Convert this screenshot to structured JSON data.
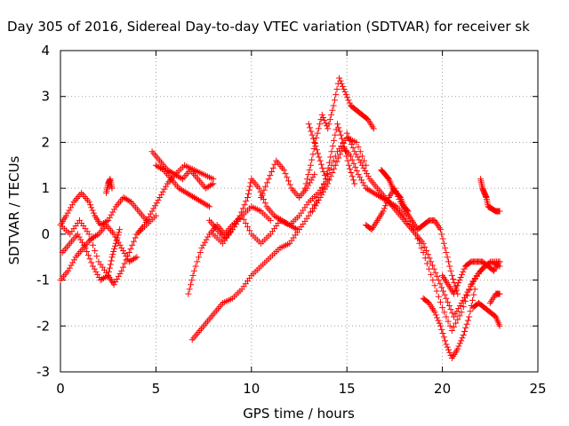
{
  "chart_data": {
    "type": "scatter",
    "title": "Day 305 of 2016, Sidereal Day-to-day VTEC variation (SDTVAR) for receiver sk",
    "xlabel": "GPS time / hours",
    "ylabel": "SDTVAR / TECUs",
    "xlim": [
      0,
      25
    ],
    "ylim": [
      -3,
      4
    ],
    "xticks": [
      "0",
      "5",
      "10",
      "15",
      "20",
      "25"
    ],
    "yticks": [
      "-3",
      "-2",
      "-1",
      "0",
      "1",
      "2",
      "3",
      "4"
    ],
    "grid": true,
    "legend": "none",
    "marker": "+",
    "color": "#ff0000",
    "series": [
      {
        "x": [
          0.0,
          0.5,
          1.0,
          1.5,
          2.0,
          2.5,
          2.8,
          3.2,
          3.6,
          4.0,
          4.5,
          5.0
        ],
        "y": [
          0.2,
          0.0,
          0.3,
          0.0,
          -0.6,
          -0.9,
          -1.1,
          -0.8,
          -0.4,
          0.0,
          0.2,
          0.4
        ]
      },
      {
        "x": [
          0.0,
          0.4,
          0.8,
          1.2,
          1.6,
          2.0,
          2.4,
          2.8,
          3.2,
          3.6,
          4.0
        ],
        "y": [
          -1.0,
          -0.8,
          -0.5,
          -0.3,
          -0.1,
          0.0,
          0.2,
          0.0,
          -0.3,
          -0.6,
          -0.5
        ]
      },
      {
        "x": [
          0.0,
          0.3,
          0.7,
          1.1,
          1.5,
          1.8,
          2.1,
          2.5,
          2.9,
          3.3,
          3.7,
          4.1,
          4.5
        ],
        "y": [
          0.2,
          0.4,
          0.7,
          0.9,
          0.7,
          0.4,
          0.2,
          0.3,
          0.6,
          0.8,
          0.7,
          0.5,
          0.3
        ]
      },
      {
        "x": [
          0.1,
          0.5,
          0.9,
          1.3,
          1.7,
          2.1,
          2.5,
          2.7,
          2.9,
          3.1
        ],
        "y": [
          -0.4,
          -0.2,
          0.0,
          -0.3,
          -0.7,
          -1.0,
          -0.9,
          -0.5,
          -0.2,
          0.1
        ]
      },
      {
        "x": [
          2.4,
          2.5,
          2.6,
          2.7
        ],
        "y": [
          0.9,
          1.1,
          1.2,
          1.0
        ]
      },
      {
        "x": [
          4.0,
          4.4,
          4.8,
          5.2,
          5.6,
          6.0,
          6.4,
          6.8,
          7.2,
          7.6,
          8.0
        ],
        "y": [
          0.0,
          0.2,
          0.5,
          0.8,
          1.1,
          1.3,
          1.2,
          1.4,
          1.2,
          1.0,
          1.1
        ]
      },
      {
        "x": [
          4.8,
          5.2,
          5.6,
          6.0,
          6.5,
          7.0,
          7.5,
          8.0
        ],
        "y": [
          1.8,
          1.6,
          1.4,
          1.3,
          1.5,
          1.4,
          1.3,
          1.2
        ]
      },
      {
        "x": [
          5.0,
          5.4,
          5.8,
          6.2,
          6.6,
          7.0,
          7.4,
          7.8
        ],
        "y": [
          1.5,
          1.4,
          1.2,
          1.0,
          0.9,
          0.8,
          0.7,
          0.6
        ]
      },
      {
        "x": [
          7.8,
          8.2,
          8.6,
          9.0,
          9.4,
          9.8,
          10.0,
          10.4,
          10.8,
          11.2,
          11.6,
          12.0,
          12.4
        ],
        "y": [
          0.3,
          0.1,
          -0.1,
          0.1,
          0.4,
          0.8,
          1.2,
          1.0,
          0.6,
          0.4,
          0.3,
          0.2,
          0.1
        ]
      },
      {
        "x": [
          6.7,
          7.0,
          7.4,
          7.8,
          8.2,
          8.6,
          9.0,
          9.5,
          10.0,
          10.5,
          11.0
        ],
        "y": [
          -1.3,
          -0.8,
          -0.3,
          0.0,
          0.2,
          0.0,
          0.2,
          0.4,
          0.6,
          0.5,
          0.3
        ]
      },
      {
        "x": [
          6.9,
          7.3,
          7.7,
          8.1,
          8.5,
          9.0,
          9.5,
          10.0,
          10.5,
          11.0,
          11.5,
          12.0,
          12.5,
          13.0,
          13.5,
          14.0,
          14.5,
          15.0,
          15.5,
          16.0
        ],
        "y": [
          -2.3,
          -2.1,
          -1.9,
          -1.7,
          -1.5,
          -1.4,
          -1.2,
          -0.9,
          -0.7,
          -0.5,
          -0.3,
          -0.2,
          0.1,
          0.4,
          0.8,
          1.3,
          1.8,
          2.1,
          2.0,
          1.5
        ]
      },
      {
        "x": [
          8.0,
          8.5,
          9.0,
          9.5,
          10.0,
          10.5,
          11.0,
          11.5,
          12.0,
          12.5,
          13.0,
          13.5,
          14.0
        ],
        "y": [
          0.0,
          -0.2,
          0.1,
          0.4,
          0.0,
          -0.2,
          0.0,
          0.3,
          0.2,
          0.4,
          0.7,
          0.9,
          1.2
        ]
      },
      {
        "x": [
          10.5,
          10.9,
          11.3,
          11.7,
          12.1,
          12.5,
          12.9,
          13.3
        ],
        "y": [
          0.8,
          1.2,
          1.6,
          1.4,
          1.0,
          0.8,
          1.0,
          1.3
        ]
      },
      {
        "x": [
          12.8,
          13.1,
          13.4,
          13.7,
          14.0,
          14.3,
          14.6,
          14.9,
          15.2,
          15.5,
          15.8,
          16.1,
          16.4
        ],
        "y": [
          1.0,
          1.5,
          2.1,
          2.6,
          2.3,
          2.8,
          3.4,
          3.1,
          2.8,
          2.7,
          2.6,
          2.5,
          2.3
        ]
      },
      {
        "x": [
          13.0,
          13.3,
          13.6,
          13.9,
          14.2,
          14.5,
          14.8,
          15.1,
          15.4
        ],
        "y": [
          2.4,
          2.0,
          1.6,
          1.2,
          1.8,
          2.4,
          2.0,
          1.5,
          1.1
        ]
      },
      {
        "x": [
          13.2,
          13.6,
          14.0,
          14.4,
          14.8,
          15.2,
          15.6,
          16.0,
          16.4,
          16.8,
          17.2,
          17.6,
          18.0,
          18.5,
          19.0,
          19.5,
          20.0,
          20.5,
          21.0,
          21.5,
          22.0,
          22.5,
          23.0
        ],
        "y": [
          0.5,
          0.8,
          1.1,
          1.5,
          1.9,
          1.7,
          1.3,
          1.0,
          0.9,
          0.8,
          0.7,
          0.6,
          0.4,
          0.1,
          -0.4,
          -1.0,
          -1.6,
          -2.1,
          -1.7,
          -1.1,
          -0.8,
          -0.6,
          -0.7
        ]
      },
      {
        "x": [
          15.0,
          15.4,
          15.8,
          16.2,
          16.6,
          17.0,
          17.4,
          17.8,
          18.2,
          18.6,
          19.0,
          19.4,
          19.8,
          20.2,
          20.6,
          21.0,
          21.4,
          21.8,
          22.2,
          22.6,
          23.0
        ],
        "y": [
          2.2,
          1.8,
          1.5,
          1.2,
          1.0,
          0.8,
          0.6,
          0.4,
          0.2,
          0.0,
          -0.2,
          -0.6,
          -1.0,
          -1.4,
          -1.8,
          -1.5,
          -1.2,
          -0.9,
          -0.7,
          -0.6,
          -0.6
        ]
      },
      {
        "x": [
          16.0,
          16.3,
          16.6,
          16.9,
          17.2,
          17.5,
          17.8,
          18.1,
          18.4,
          18.7,
          19.0,
          19.3,
          19.6,
          19.9,
          20.2,
          20.5,
          20.8
        ],
        "y": [
          0.2,
          0.1,
          0.3,
          0.5,
          0.8,
          1.0,
          0.7,
          0.5,
          0.3,
          0.1,
          0.2,
          0.3,
          0.3,
          0.1,
          -0.4,
          -0.9,
          -1.3
        ]
      },
      {
        "x": [
          19.0,
          19.3,
          19.6,
          19.9,
          20.2,
          20.5,
          20.8,
          21.1,
          21.4,
          21.7
        ],
        "y": [
          -1.4,
          -1.5,
          -1.7,
          -2.0,
          -2.4,
          -2.7,
          -2.5,
          -2.2,
          -1.8,
          -1.2
        ]
      },
      {
        "x": [
          20.0,
          20.3,
          20.6,
          20.9,
          21.2,
          21.5,
          21.8,
          22.1,
          22.4,
          22.7,
          23.0
        ],
        "y": [
          -0.9,
          -1.1,
          -1.3,
          -1.0,
          -0.7,
          -0.6,
          -0.6,
          -0.6,
          -0.7,
          -0.8,
          -0.6
        ]
      },
      {
        "x": [
          21.6,
          21.9,
          22.2,
          22.5,
          22.8,
          23.0
        ],
        "y": [
          -1.6,
          -1.5,
          -1.6,
          -1.7,
          -1.8,
          -2.0
        ]
      },
      {
        "x": [
          22.5,
          22.8,
          23.0
        ],
        "y": [
          -1.5,
          -1.3,
          -1.3
        ]
      },
      {
        "x": [
          22.0,
          22.1,
          22.2,
          22.3,
          22.4,
          22.6,
          22.8,
          23.0
        ],
        "y": [
          1.2,
          1.0,
          0.9,
          0.8,
          0.6,
          0.55,
          0.5,
          0.5
        ]
      },
      {
        "x": [
          16.8,
          17.0,
          17.2,
          17.4,
          17.6,
          17.8,
          18.0,
          18.2
        ],
        "y": [
          1.4,
          1.3,
          1.2,
          1.0,
          0.9,
          0.8,
          0.6,
          0.5
        ]
      }
    ]
  }
}
